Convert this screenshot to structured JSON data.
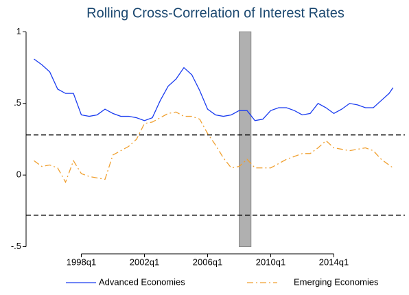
{
  "chart_data": {
    "type": "line",
    "title": "Rolling Cross-Correlation of Interest Rates",
    "x": [
      140,
      142,
      144,
      146,
      148,
      150,
      152,
      154,
      156,
      158,
      160,
      162,
      164,
      166,
      168,
      170,
      172,
      174,
      176,
      178,
      180,
      182,
      184,
      186,
      188,
      190,
      192,
      194,
      196,
      198,
      200,
      202,
      204,
      206,
      208,
      210,
      212,
      214,
      216,
      218,
      220,
      222,
      224,
      226,
      228,
      230,
      231
    ],
    "series": [
      {
        "name": "Advanced Economies",
        "color": "#1a3cf0",
        "dash": "none",
        "values": [
          0.81,
          0.77,
          0.72,
          0.6,
          0.57,
          0.57,
          0.42,
          0.41,
          0.42,
          0.46,
          0.43,
          0.41,
          0.41,
          0.4,
          0.38,
          0.4,
          0.52,
          0.62,
          0.67,
          0.75,
          0.7,
          0.59,
          0.46,
          0.42,
          0.41,
          0.42,
          0.45,
          0.45,
          0.38,
          0.39,
          0.45,
          0.47,
          0.47,
          0.45,
          0.42,
          0.43,
          0.5,
          0.47,
          0.43,
          0.46,
          0.5,
          0.49,
          0.47,
          0.47,
          0.52,
          0.57,
          0.61
        ]
      },
      {
        "name": "Emerging Economies",
        "color": "#f0a030",
        "dash": "9 4 2 4",
        "values": [
          0.1,
          0.06,
          0.07,
          0.05,
          -0.05,
          0.1,
          0.01,
          -0.01,
          -0.02,
          -0.03,
          0.14,
          0.17,
          0.2,
          0.25,
          0.36,
          0.37,
          0.4,
          0.43,
          0.44,
          0.41,
          0.41,
          0.39,
          0.29,
          0.21,
          0.12,
          0.05,
          0.06,
          0.11,
          0.05,
          0.05,
          0.05,
          0.08,
          0.11,
          0.13,
          0.15,
          0.15,
          0.19,
          0.24,
          0.19,
          0.18,
          0.17,
          0.18,
          0.19,
          0.17,
          0.11,
          0.07,
          0.05
        ]
      }
    ],
    "xlim": [
      138,
      234
    ],
    "xticks": [
      {
        "value": 152,
        "label": "1998q1"
      },
      {
        "value": 168,
        "label": "2002q1"
      },
      {
        "value": 184,
        "label": "2006q1"
      },
      {
        "value": 200,
        "label": "2010q1"
      },
      {
        "value": 216,
        "label": "2014q1"
      }
    ],
    "ylim": [
      -0.55,
      1.04
    ],
    "yticks": [
      {
        "value": -0.5,
        "label": "-.5"
      },
      0,
      {
        "value": 0.5,
        "label": ".5"
      },
      1
    ],
    "shaded_region": [
      192,
      195
    ],
    "reference_lines": [
      0.28,
      -0.28
    ],
    "legend": "bottom"
  }
}
